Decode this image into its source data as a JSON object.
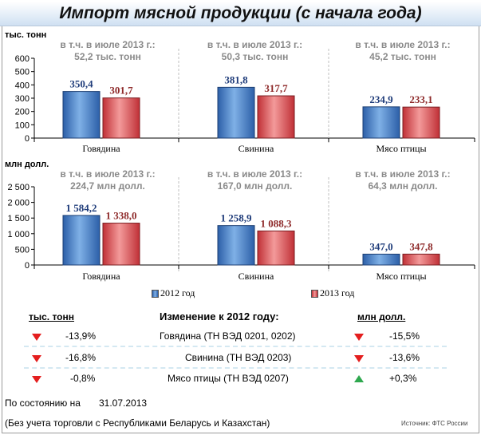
{
  "title": "Импорт мясной продукции (с начала года)",
  "colors": {
    "s2012": "#3d7cc9",
    "s2013": "#e0474c",
    "down": "#e41e1e",
    "up": "#2fa84f",
    "note": "#8a8a8a"
  },
  "chart_data": [
    {
      "type": "bar",
      "ylabel": "тыс. тонн",
      "ylim": [
        0,
        600
      ],
      "yticks": [
        0,
        100,
        200,
        300,
        400,
        500,
        600
      ],
      "ytick_labels": [
        "0",
        "100",
        "200",
        "300",
        "400",
        "500",
        "600"
      ],
      "categories": [
        "Говядина",
        "Свинина",
        "Мясо птицы"
      ],
      "series": [
        {
          "name": "2012 год",
          "values": [
            350.4,
            381.8,
            234.9
          ],
          "labels": [
            "350,4",
            "381,8",
            "234,9"
          ]
        },
        {
          "name": "2013 год",
          "values": [
            301.7,
            317.7,
            233.1
          ],
          "labels": [
            "301,7",
            "317,7",
            "233,1"
          ]
        }
      ],
      "annotations": [
        [
          "в т.ч. в июле 2013 г.:",
          "52,2 тыс. тонн"
        ],
        [
          "в т.ч. в июле 2013 г.:",
          "50,3 тыс. тонн"
        ],
        [
          "в т.ч. в июле 2013 г.:",
          "45,2 тыс. тонн"
        ]
      ]
    },
    {
      "type": "bar",
      "ylabel": "млн долл.",
      "ylim": [
        0,
        2500
      ],
      "yticks": [
        0,
        500,
        1000,
        1500,
        2000,
        2500
      ],
      "ytick_labels": [
        "0",
        "500",
        "1 000",
        "1 500",
        "2 000",
        "2 500"
      ],
      "categories": [
        "Говядина",
        "Свинина",
        "Мясо птицы"
      ],
      "series": [
        {
          "name": "2012 год",
          "values": [
            1584.2,
            1258.9,
            347.0
          ],
          "labels": [
            "1 584,2",
            "1 258,9",
            "347,0"
          ]
        },
        {
          "name": "2013 год",
          "values": [
            1338.0,
            1088.3,
            347.8
          ],
          "labels": [
            "1 338,0",
            "1 088,3",
            "347,8"
          ]
        }
      ],
      "annotations": [
        [
          "в т.ч. в июле 2013 г.:",
          "224,7 млн долл."
        ],
        [
          "в т.ч. в июле 2013 г.:",
          "167,0 млн долл."
        ],
        [
          "в т.ч. в июле 2013 г.:",
          "64,3 млн долл."
        ]
      ]
    }
  ],
  "legend": {
    "item1": "2012 год",
    "item2": "2013 год"
  },
  "table": {
    "left_header": "тыс. тонн",
    "center_header": "Изменение к 2012 году:",
    "right_header": "млн долл.",
    "rows": [
      {
        "left": "-13,9%",
        "left_dir": "down",
        "name": "Говядина (ТН ВЭД 0201, 0202)",
        "right": "-15,5%",
        "right_dir": "down"
      },
      {
        "left": "-16,8%",
        "left_dir": "down",
        "name": "Свинина (ТН ВЭД 0203)",
        "right": "-13,6%",
        "right_dir": "down"
      },
      {
        "left": "-0,8%",
        "left_dir": "down",
        "name": "Мясо птицы (ТН ВЭД 0207)",
        "right": "+0,3%",
        "right_dir": "up"
      }
    ]
  },
  "footer": {
    "as_of_label": "По состоянию на",
    "as_of_date": "31.07.2013",
    "note": "(Без учета торговли с Республиками Беларусь и Казахстан)",
    "source": "Источник: ФТС России"
  }
}
